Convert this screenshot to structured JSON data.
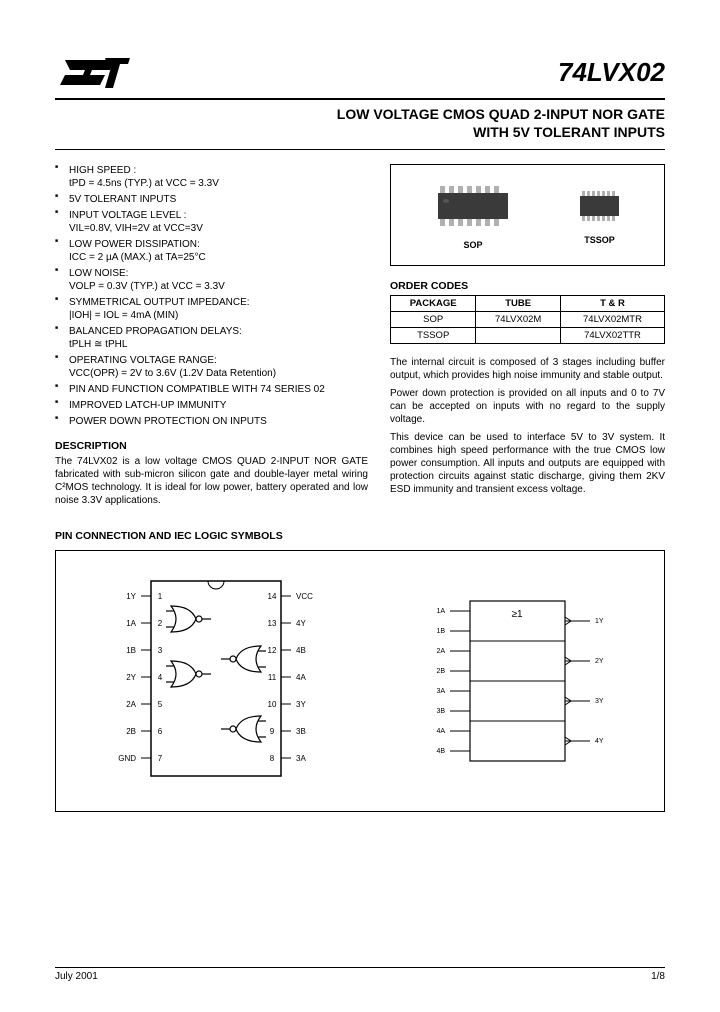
{
  "header": {
    "part_number": "74LVX02",
    "title_line1": "LOW VOLTAGE CMOS QUAD 2-INPUT NOR GATE",
    "title_line2": "WITH 5V TOLERANT INPUTS"
  },
  "features": [
    {
      "main": "HIGH SPEED :",
      "sub": "tPD = 4.5ns (TYP.) at VCC = 3.3V"
    },
    {
      "main": "5V TOLERANT INPUTS"
    },
    {
      "main": "INPUT VOLTAGE LEVEL :",
      "sub": "VIL=0.8V, VIH=2V at VCC=3V"
    },
    {
      "main": "LOW POWER DISSIPATION:",
      "sub": "ICC = 2 µA (MAX.) at TA=25°C"
    },
    {
      "main": "LOW NOISE:",
      "sub": "VOLP = 0.3V (TYP.) at VCC = 3.3V"
    },
    {
      "main": "SYMMETRICAL OUTPUT IMPEDANCE:",
      "sub": "|IOH| = IOL = 4mA (MIN)"
    },
    {
      "main": "BALANCED PROPAGATION DELAYS:",
      "sub": "tPLH ≅ tPHL"
    },
    {
      "main": "OPERATING VOLTAGE RANGE:",
      "sub": "VCC(OPR) = 2V to 3.6V (1.2V Data Retention)"
    },
    {
      "main": "PIN AND FUNCTION COMPATIBLE WITH 74 SERIES 02"
    },
    {
      "main": "IMPROVED LATCH-UP IMMUNITY"
    },
    {
      "main": "POWER DOWN PROTECTION ON INPUTS"
    }
  ],
  "description": {
    "heading": "DESCRIPTION",
    "p1": "The 74LVX02 is a low voltage CMOS QUAD 2-INPUT NOR GATE fabricated with sub-micron silicon gate and double-layer metal wiring C²MOS technology. It is ideal for low power, battery operated and low noise 3.3V applications.",
    "p2": "The internal circuit is composed of 3 stages including buffer output, which provides high noise immunity and stable output.",
    "p3": "Power down protection is provided on all inputs and 0 to 7V can be accepted on inputs with no regard to the supply voltage.",
    "p4": "This device can be used to interface 5V to 3V system. It combines high speed performance with the true CMOS low power consumption. All inputs and outputs are equipped with protection circuits against static discharge, giving them 2KV ESD immunity and transient excess voltage."
  },
  "packages": {
    "labels": {
      "sop": "SOP",
      "tssop": "TSSOP"
    }
  },
  "order_codes": {
    "heading": "ORDER CODES",
    "columns": [
      "PACKAGE",
      "TUBE",
      "T & R"
    ],
    "rows": [
      [
        "SOP",
        "74LVX02M",
        "74LVX02MTR"
      ],
      [
        "TSSOP",
        "",
        "74LVX02TTR"
      ]
    ]
  },
  "pin_section": {
    "heading": "PIN CONNECTION AND IEC LOGIC SYMBOLS",
    "pins_left": [
      "1Y",
      "1A",
      "1B",
      "2Y",
      "2A",
      "2B",
      "GND"
    ],
    "pins_right": [
      "VCC",
      "4Y",
      "4B",
      "4A",
      "3Y",
      "3B",
      "3A"
    ],
    "iec_left": [
      "1A",
      "1B",
      "2A",
      "2B",
      "3A",
      "3B",
      "4A",
      "4B"
    ],
    "iec_right": [
      "1Y",
      "2Y",
      "3Y",
      "4Y"
    ],
    "iec_label": "≥1"
  },
  "footer": {
    "date": "July 2001",
    "page": "1/8"
  },
  "colors": {
    "text": "#000000",
    "bg": "#ffffff",
    "border": "#000000",
    "chip_body": "#3a3a3a",
    "chip_pin": "#b0b0b0"
  }
}
